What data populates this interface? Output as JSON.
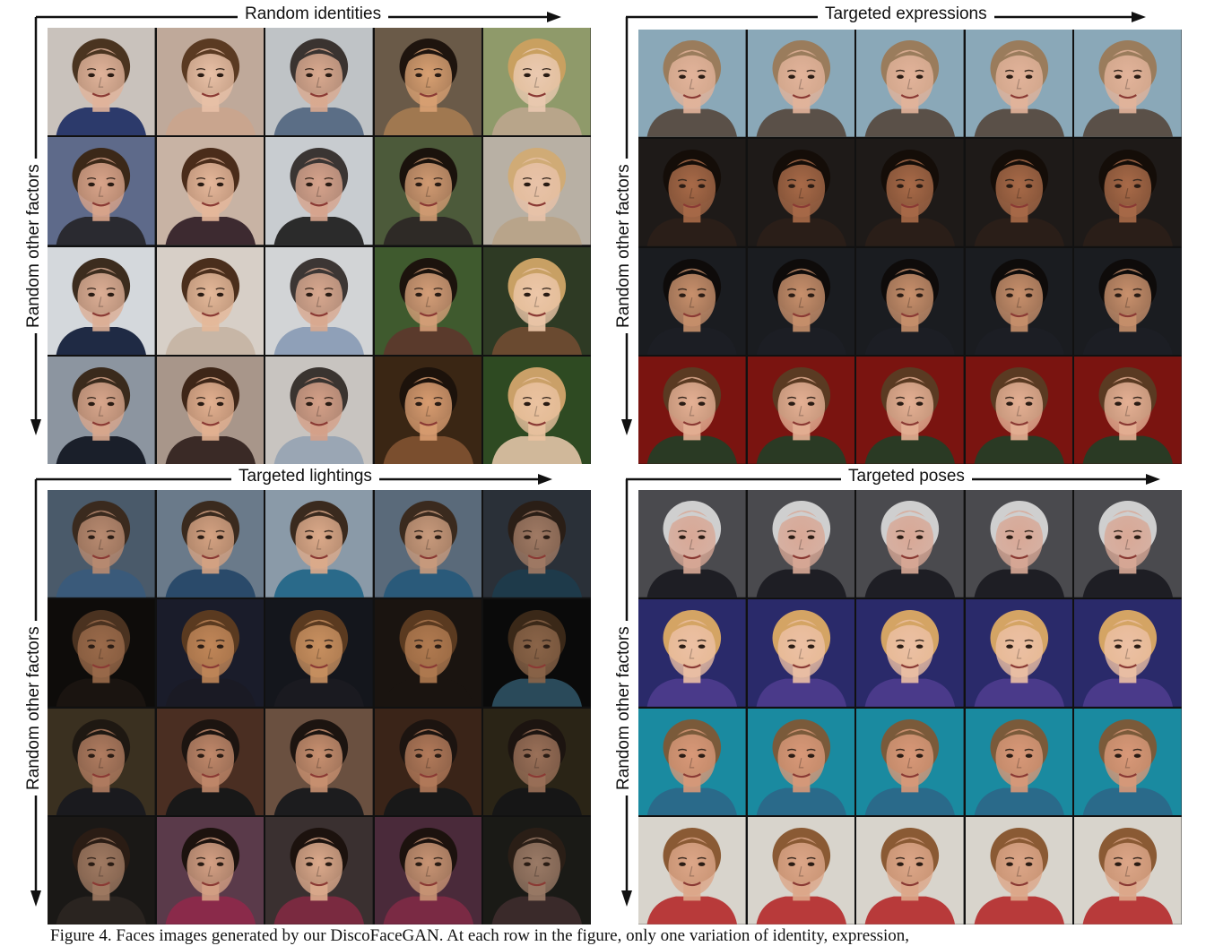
{
  "panels": [
    {
      "id": "random-identities",
      "top_label": "Random identities",
      "side_label": "Random other factors",
      "rows": [
        [
          {
            "bg": "#c9c2bc",
            "skin": "#e0b39a",
            "hair": "#4a3420",
            "shirt": "#2c3a6b"
          },
          {
            "bg": "#bfa99a",
            "skin": "#e8c0a6",
            "hair": "#5a3a22",
            "shirt": "#c9a58e"
          },
          {
            "bg": "#bfc3c6",
            "skin": "#d9a98f",
            "hair": "#3a3330",
            "shirt": "#5b6e86"
          },
          {
            "bg": "#6a5a48",
            "skin": "#d8a072",
            "hair": "#1e140e",
            "shirt": "#a07850"
          },
          {
            "bg": "#8f9a6a",
            "skin": "#eac9b0",
            "hair": "#c9a060",
            "shirt": "#b8a58a"
          }
        ],
        [
          {
            "bg": "#5e6a8a",
            "skin": "#d9a48a",
            "hair": "#3b2818",
            "shirt": "#2a2a30"
          },
          {
            "bg": "#c8b3a4",
            "skin": "#e5b79a",
            "hair": "#4a2c1a",
            "shirt": "#3d2a30"
          },
          {
            "bg": "#c8ccd0",
            "skin": "#d6a38c",
            "hair": "#3a3533",
            "shirt": "#2b2b2b"
          },
          {
            "bg": "#4c5a3a",
            "skin": "#d09a72",
            "hair": "#1a120c",
            "shirt": "#2e2a26"
          },
          {
            "bg": "#b8b0a4",
            "skin": "#e8c2a8",
            "hair": "#d0ab76",
            "shirt": "#b8a48a"
          }
        ],
        [
          {
            "bg": "#d4d8dc",
            "skin": "#dcae95",
            "hair": "#3c2c1e",
            "shirt": "#1f2a44"
          },
          {
            "bg": "#d7cfc7",
            "skin": "#e4b899",
            "hair": "#4a2e1c",
            "shirt": "#c7b6a6"
          },
          {
            "bg": "#d2d4d6",
            "skin": "#d8a88f",
            "hair": "#3c3634",
            "shirt": "#8fa0b8"
          },
          {
            "bg": "#3f5a2e",
            "skin": "#d49e78",
            "hair": "#1c130d",
            "shirt": "#5a3a2c"
          },
          {
            "bg": "#2e3a24",
            "skin": "#ecc6a8",
            "hair": "#c8a064",
            "shirt": "#6a4a30"
          }
        ],
        [
          {
            "bg": "#8c95a0",
            "skin": "#d8a68c",
            "hair": "#3a2a1c",
            "shirt": "#1a1f2a"
          },
          {
            "bg": "#a8968a",
            "skin": "#e2b090",
            "hair": "#3e2618",
            "shirt": "#3a2a26"
          },
          {
            "bg": "#c8c4c0",
            "skin": "#d4a088",
            "hair": "#3a3430",
            "shirt": "#9aa6b4"
          },
          {
            "bg": "#3a2614",
            "skin": "#d89c70",
            "hair": "#1c120b",
            "shirt": "#7a4e2e"
          },
          {
            "bg": "#2e4a22",
            "skin": "#eac2a0",
            "hair": "#caa068",
            "shirt": "#d0b89a"
          }
        ]
      ]
    },
    {
      "id": "targeted-expressions",
      "top_label": "Targeted expressions",
      "side_label": "Random other factors",
      "rows": [
        [
          {
            "bg": "#8aa8b8",
            "skin": "#e2b39a",
            "hair": "#9a7c5c",
            "shirt": "#5a5048"
          },
          {
            "bg": "#8aa8b8",
            "skin": "#e2b39a",
            "hair": "#9a7c5c",
            "shirt": "#5a5048"
          },
          {
            "bg": "#8aa8b8",
            "skin": "#e2b39a",
            "hair": "#9a7c5c",
            "shirt": "#5a5048"
          },
          {
            "bg": "#8aa8b8",
            "skin": "#e2b39a",
            "hair": "#9a7c5c",
            "shirt": "#5a5048"
          },
          {
            "bg": "#8aa8b8",
            "skin": "#e2b39a",
            "hair": "#9a7c5c",
            "shirt": "#5a5048"
          }
        ],
        [
          {
            "bg": "#1e1a18",
            "skin": "#a86a48",
            "hair": "#140d08",
            "shirt": "#2a1e18"
          },
          {
            "bg": "#1e1a18",
            "skin": "#a86a48",
            "hair": "#140d08",
            "shirt": "#2a1e18"
          },
          {
            "bg": "#1e1a18",
            "skin": "#a86a48",
            "hair": "#140d08",
            "shirt": "#2a1e18"
          },
          {
            "bg": "#1e1a18",
            "skin": "#a86a48",
            "hair": "#140d08",
            "shirt": "#2a1e18"
          },
          {
            "bg": "#1e1a18",
            "skin": "#a86a48",
            "hair": "#140d08",
            "shirt": "#2a1e18"
          }
        ],
        [
          {
            "bg": "#1a1c20",
            "skin": "#c8906c",
            "hair": "#0e0b0a",
            "shirt": "#1c1e24"
          },
          {
            "bg": "#1a1c20",
            "skin": "#c8906c",
            "hair": "#0e0b0a",
            "shirt": "#1c1e24"
          },
          {
            "bg": "#1a1c20",
            "skin": "#c8906c",
            "hair": "#0e0b0a",
            "shirt": "#1c1e24"
          },
          {
            "bg": "#1a1c20",
            "skin": "#c8906c",
            "hair": "#0e0b0a",
            "shirt": "#1c1e24"
          },
          {
            "bg": "#1a1c20",
            "skin": "#c8906c",
            "hair": "#0e0b0a",
            "shirt": "#1c1e24"
          }
        ],
        [
          {
            "bg": "#7a1410",
            "skin": "#e4b094",
            "hair": "#5a3a22",
            "shirt": "#2a3a24"
          },
          {
            "bg": "#7a1410",
            "skin": "#e4b094",
            "hair": "#5a3a22",
            "shirt": "#2a3a24"
          },
          {
            "bg": "#7a1410",
            "skin": "#e4b094",
            "hair": "#5a3a22",
            "shirt": "#2a3a24"
          },
          {
            "bg": "#7a1410",
            "skin": "#e4b094",
            "hair": "#5a3a22",
            "shirt": "#2a3a24"
          },
          {
            "bg": "#7a1410",
            "skin": "#e4b094",
            "hair": "#5a3a22",
            "shirt": "#2a3a24"
          }
        ]
      ]
    },
    {
      "id": "targeted-lightings",
      "top_label": "Targeted lightings",
      "side_label": "Random other factors",
      "rows": [
        [
          {
            "bg": "#4a5a6a",
            "skin": "#b88a70",
            "hair": "#3a2a1e",
            "shirt": "#3a5a7a"
          },
          {
            "bg": "#6a7a8a",
            "skin": "#d4a282",
            "hair": "#3a2a1e",
            "shirt": "#2a4a6a"
          },
          {
            "bg": "#8a9aa8",
            "skin": "#dcaa8a",
            "hair": "#3a2a1e",
            "shirt": "#2a6a8a"
          },
          {
            "bg": "#5a6a7a",
            "skin": "#c89a7c",
            "hair": "#3a2a1e",
            "shirt": "#2a5a7a"
          },
          {
            "bg": "#2a3038",
            "skin": "#a07a64",
            "hair": "#2a1e16",
            "shirt": "#1e3a4a"
          }
        ],
        [
          {
            "bg": "#0e0c0a",
            "skin": "#9a6a4a",
            "hair": "#4a3220",
            "shirt": "#1a1410"
          },
          {
            "bg": "#1a1c2a",
            "skin": "#c08658",
            "hair": "#5a3a20",
            "shirt": "#1a1a24"
          },
          {
            "bg": "#14161c",
            "skin": "#c89060",
            "hair": "#5a3a20",
            "shirt": "#1a1a20"
          },
          {
            "bg": "#1a1410",
            "skin": "#b07a50",
            "hair": "#5a3a20",
            "shirt": "#1a1410"
          },
          {
            "bg": "#0a0a0a",
            "skin": "#8a6448",
            "hair": "#3a2818",
            "shirt": "#2a4a5a"
          }
        ],
        [
          {
            "bg": "#3a3020",
            "skin": "#b07c60",
            "hair": "#1e1812",
            "shirt": "#1a1a1e"
          },
          {
            "bg": "#4a2e22",
            "skin": "#c0886a",
            "hair": "#1c1410",
            "shirt": "#181818"
          },
          {
            "bg": "#6a5040",
            "skin": "#c89070",
            "hair": "#1c1410",
            "shirt": "#1c1c1e"
          },
          {
            "bg": "#3a2418",
            "skin": "#b27a5a",
            "hair": "#1c1410",
            "shirt": "#181818"
          },
          {
            "bg": "#2a2416",
            "skin": "#9a7058",
            "hair": "#1c1410",
            "shirt": "#161616"
          }
        ],
        [
          {
            "bg": "#1a1816",
            "skin": "#a07a62",
            "hair": "#2a1c14",
            "shirt": "#2a2420"
          },
          {
            "bg": "#5a3a4a",
            "skin": "#d4a084",
            "hair": "#1c120e",
            "shirt": "#8a2a4a"
          },
          {
            "bg": "#3a3030",
            "skin": "#dcaa8c",
            "hair": "#1c120e",
            "shirt": "#7a2a40"
          },
          {
            "bg": "#4a2a3a",
            "skin": "#c89474",
            "hair": "#1c120e",
            "shirt": "#7a2a44"
          },
          {
            "bg": "#1a1a16",
            "skin": "#9a7a66",
            "hair": "#2a1e16",
            "shirt": "#3a2a2a"
          }
        ]
      ]
    },
    {
      "id": "targeted-poses",
      "top_label": "Targeted poses",
      "side_label": "Random other factors",
      "rows": [
        [
          {
            "bg": "#4a4a4e",
            "skin": "#d8a896",
            "hair": "#cfcfcf",
            "shirt": "#1e1e24"
          },
          {
            "bg": "#4a4a4e",
            "skin": "#d8a896",
            "hair": "#cfcfcf",
            "shirt": "#1e1e24"
          },
          {
            "bg": "#4a4a4e",
            "skin": "#d8a896",
            "hair": "#cfcfcf",
            "shirt": "#1e1e24"
          },
          {
            "bg": "#4a4a4e",
            "skin": "#d8a896",
            "hair": "#cfcfcf",
            "shirt": "#1e1e24"
          },
          {
            "bg": "#4a4a4e",
            "skin": "#d8a896",
            "hair": "#cfcfcf",
            "shirt": "#1e1e24"
          }
        ],
        [
          {
            "bg": "#2a2a6a",
            "skin": "#ecc0a4",
            "hair": "#d4a464",
            "shirt": "#4a3a8a"
          },
          {
            "bg": "#2a2a6a",
            "skin": "#ecc0a4",
            "hair": "#d4a464",
            "shirt": "#4a3a8a"
          },
          {
            "bg": "#2a2a6a",
            "skin": "#ecc0a4",
            "hair": "#d4a464",
            "shirt": "#4a3a8a"
          },
          {
            "bg": "#2a2a6a",
            "skin": "#ecc0a4",
            "hair": "#d4a464",
            "shirt": "#4a3a8a"
          },
          {
            "bg": "#2a2a6a",
            "skin": "#ecc0a4",
            "hair": "#d4a464",
            "shirt": "#4a3a8a"
          }
        ],
        [
          {
            "bg": "#1a8aa0",
            "skin": "#d89878",
            "hair": "#7a5a3a",
            "shirt": "#2a6a8a"
          },
          {
            "bg": "#1a8aa0",
            "skin": "#d89878",
            "hair": "#7a5a3a",
            "shirt": "#2a6a8a"
          },
          {
            "bg": "#1a8aa0",
            "skin": "#d89878",
            "hair": "#7a5a3a",
            "shirt": "#2a6a8a"
          },
          {
            "bg": "#1a8aa0",
            "skin": "#d89878",
            "hair": "#7a5a3a",
            "shirt": "#2a6a8a"
          },
          {
            "bg": "#1a8aa0",
            "skin": "#d89878",
            "hair": "#7a5a3a",
            "shirt": "#2a6a8a"
          }
        ],
        [
          {
            "bg": "#d8d4cc",
            "skin": "#dca688",
            "hair": "#8a5a34",
            "shirt": "#b83a3a"
          },
          {
            "bg": "#d8d4cc",
            "skin": "#dca688",
            "hair": "#8a5a34",
            "shirt": "#b83a3a"
          },
          {
            "bg": "#d8d4cc",
            "skin": "#dca688",
            "hair": "#8a5a34",
            "shirt": "#b83a3a"
          },
          {
            "bg": "#d8d4cc",
            "skin": "#dca688",
            "hair": "#8a5a34",
            "shirt": "#b83a3a"
          },
          {
            "bg": "#d8d4cc",
            "skin": "#dca688",
            "hair": "#8a5a34",
            "shirt": "#b83a3a"
          }
        ]
      ]
    }
  ],
  "caption": "Figure 4. Faces images generated by our DiscoFaceGAN. At each row in the figure, only one variation of identity, expression,"
}
